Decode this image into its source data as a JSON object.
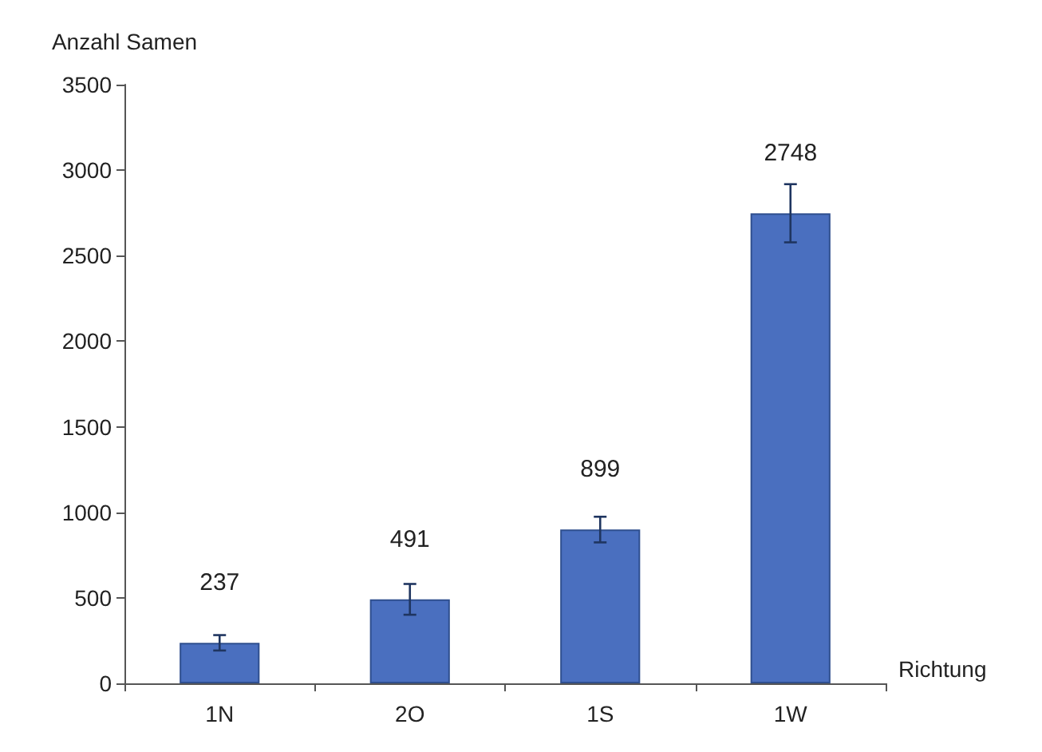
{
  "chart_data": {
    "type": "bar",
    "ylabel": "Anzahl Samen",
    "xlabel": "Richtung",
    "categories": [
      "1N",
      "2O",
      "1S",
      "1W"
    ],
    "values": [
      237,
      491,
      899,
      2748
    ],
    "errors": [
      45,
      90,
      75,
      170
    ],
    "color": "#4a6fbf",
    "data_labels": true,
    "ylim": [
      0,
      3500
    ],
    "yticks": [
      0,
      500,
      1000,
      1500,
      2000,
      2500,
      3000,
      3500
    ],
    "grid": false
  }
}
